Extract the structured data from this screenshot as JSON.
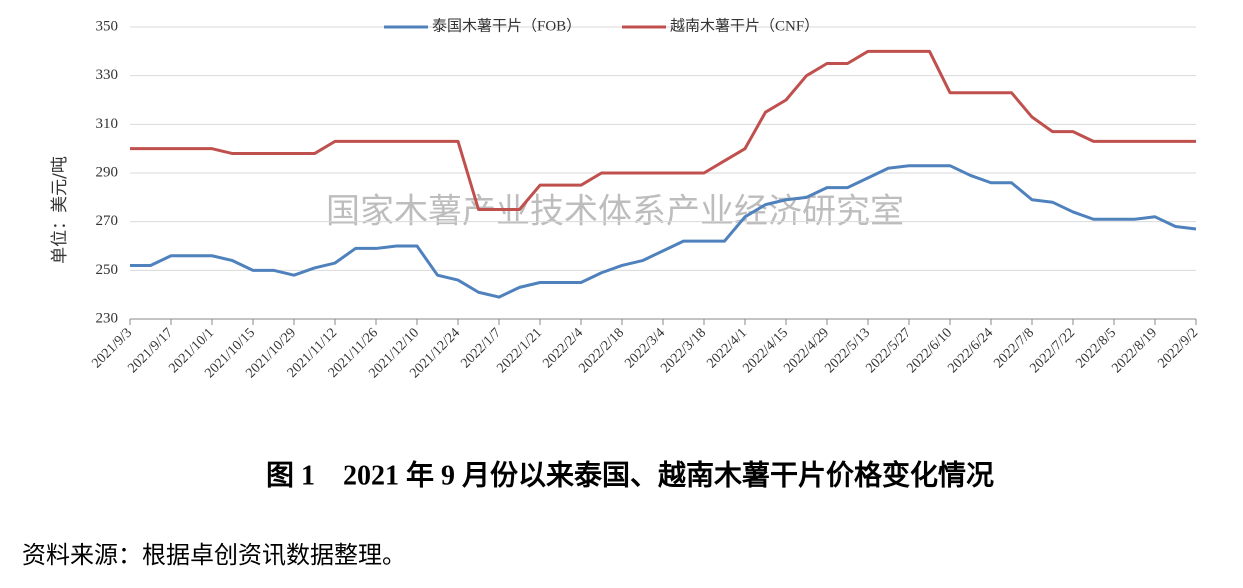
{
  "chart_data": {
    "type": "line",
    "y_label": "单位：美元/吨",
    "watermark": "国家木薯产业技术体系产业经济研究室",
    "categories": [
      "2021/9/3",
      null,
      "2021/9/17",
      null,
      "2021/10/1",
      null,
      "2021/10/15",
      null,
      "2021/10/29",
      null,
      "2021/11/12",
      null,
      "2021/11/26",
      null,
      "2021/12/10",
      null,
      "2021/12/24",
      null,
      "2022/1/7",
      null,
      "2022/1/21",
      null,
      "2022/2/4",
      null,
      "2022/2/18",
      null,
      "2022/3/4",
      null,
      "2022/3/18",
      null,
      "2022/4/1",
      null,
      "2022/4/15",
      null,
      "2022/4/29",
      null,
      "2022/5/13",
      null,
      "2022/5/27",
      null,
      "2022/6/10",
      null,
      "2022/6/24",
      null,
      "2022/7/8",
      null,
      "2022/7/22",
      null,
      "2022/8/5",
      null,
      "2022/8/19",
      null,
      "2022/9/2"
    ],
    "series": [
      {
        "name": "泰国木薯干片（FOB）",
        "color": "#4f81bd",
        "values": [
          252,
          252,
          256,
          256,
          256,
          254,
          250,
          250,
          248,
          251,
          253,
          259,
          259,
          260,
          260,
          248,
          246,
          241,
          239,
          243,
          245,
          245,
          245,
          249,
          252,
          254,
          258,
          262,
          262,
          262,
          272,
          277,
          279,
          280,
          284,
          284,
          288,
          292,
          293,
          293,
          293,
          289,
          286,
          286,
          279,
          278,
          274,
          271,
          271,
          271,
          272,
          268,
          267
        ]
      },
      {
        "name": "越南木薯干片（CNF）",
        "color": "#c0504d",
        "values": [
          300,
          300,
          300,
          300,
          300,
          298,
          298,
          298,
          298,
          298,
          303,
          303,
          303,
          303,
          303,
          303,
          303,
          275,
          275,
          275,
          285,
          285,
          285,
          290,
          290,
          290,
          290,
          290,
          290,
          295,
          300,
          315,
          320,
          330,
          335,
          335,
          340,
          340,
          340,
          340,
          323,
          323,
          323,
          323,
          313,
          307,
          307,
          303,
          303,
          303,
          303,
          303,
          303
        ]
      }
    ],
    "ylim": [
      230,
      350
    ],
    "yticks": [
      230,
      250,
      270,
      290,
      310,
      330,
      350
    ],
    "grid": true,
    "legend": "top"
  },
  "caption": "图 1　2021 年 9 月份以来泰国、越南木薯干片价格变化情况",
  "source": "资料来源：根据卓创资讯数据整理。"
}
